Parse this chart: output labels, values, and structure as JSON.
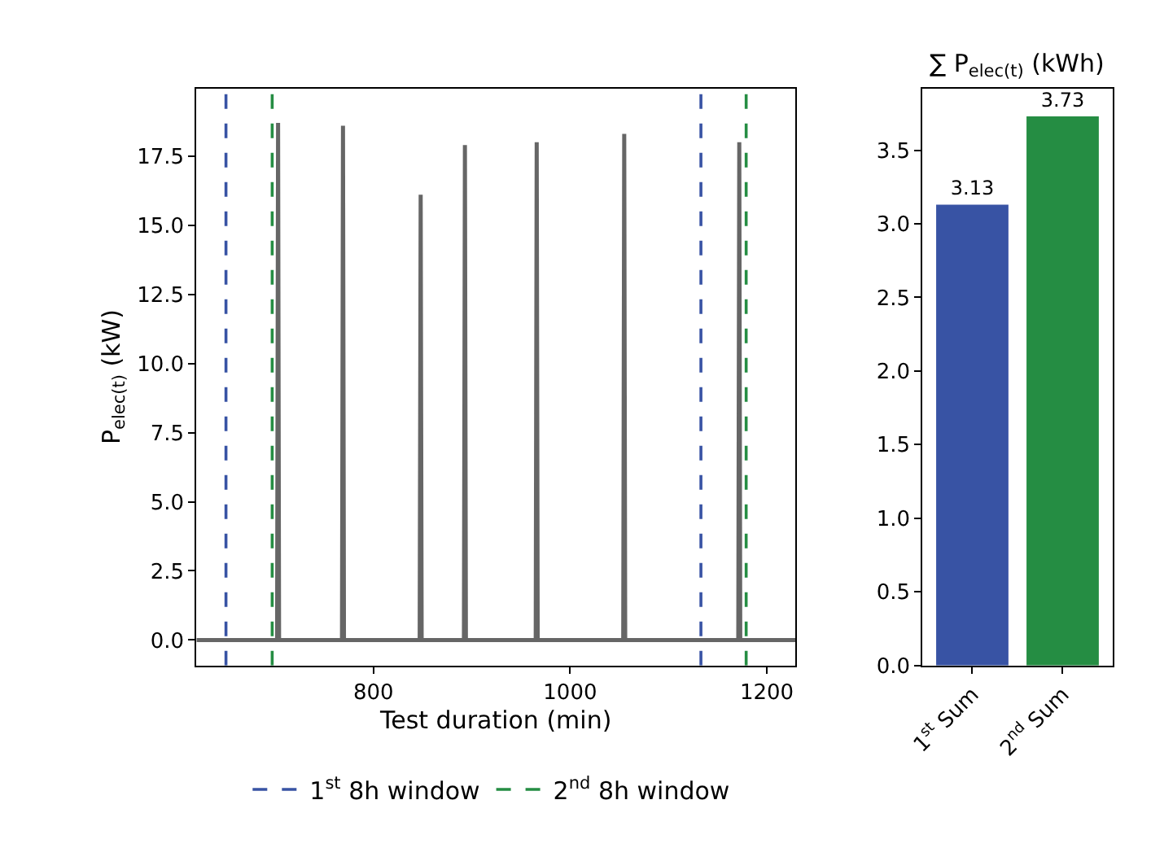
{
  "chart_data": [
    {
      "type": "line",
      "xlabel": "Test duration (min)",
      "ylabel": "P$_{elec(t)}$ (kW)",
      "xlim": [
        620,
        1229
      ],
      "ylim": [
        -0.92,
        19.95
      ],
      "xticks": [
        800,
        1000,
        1200
      ],
      "yticks": [
        {
          "value": 0,
          "label": "0.0"
        },
        2.5,
        {
          "value": 5,
          "label": "5.0"
        },
        7.5,
        {
          "value": 10,
          "label": "10.0"
        },
        12.5,
        {
          "value": 15,
          "label": "15.0"
        },
        17.5
      ],
      "legend": "bottom",
      "marker": "none",
      "line_style": "solid",
      "x": [
        620,
        702,
        703,
        704,
        768,
        769,
        770,
        847,
        848,
        849,
        892,
        893,
        894,
        965,
        966,
        967,
        1054,
        1055,
        1056,
        1171,
        1172,
        1173,
        1229
      ],
      "series": [
        {
          "color": "#666666",
          "values": [
            0,
            0,
            18.7,
            0,
            0,
            18.6,
            0,
            0,
            16.1,
            0,
            0,
            17.9,
            0,
            0,
            18.0,
            0,
            0,
            18.3,
            0,
            0,
            18.0,
            0,
            0
          ]
        }
      ],
      "ref_lines": [
        {
          "axis": "x",
          "value": 650,
          "label": "1$^{st}$ 8h window",
          "color": "#3853a4",
          "line_style": "dashed"
        },
        {
          "axis": "x",
          "value": 697,
          "label": "2$^{nd}$ 8h window",
          "color": "#258d43",
          "line_style": "dashed"
        },
        {
          "axis": "x",
          "value": 1133,
          "label": null,
          "color": "#3853a4",
          "line_style": "dashed"
        },
        {
          "axis": "x",
          "value": 1179,
          "label": null,
          "color": "#258d43",
          "line_style": "dashed"
        }
      ]
    },
    {
      "type": "bar",
      "title": "∑ P$_{elec(t)}$ (kWh)",
      "categories": [
        "1$^{st}$ Sum",
        "2$^{nd}$ Sum"
      ],
      "values": [
        3.13,
        3.73
      ],
      "colors": [
        "#3853a4",
        "#258d43"
      ],
      "ylim": [
        0,
        3.92
      ],
      "yticks": [
        {
          "value": 0,
          "label": "0.0"
        },
        0.5,
        {
          "value": 1,
          "label": "1.0"
        },
        1.5,
        {
          "value": 2,
          "label": "2.0"
        },
        2.5,
        {
          "value": 3,
          "label": "3.0"
        },
        3.5
      ],
      "data_labels": true
    }
  ]
}
